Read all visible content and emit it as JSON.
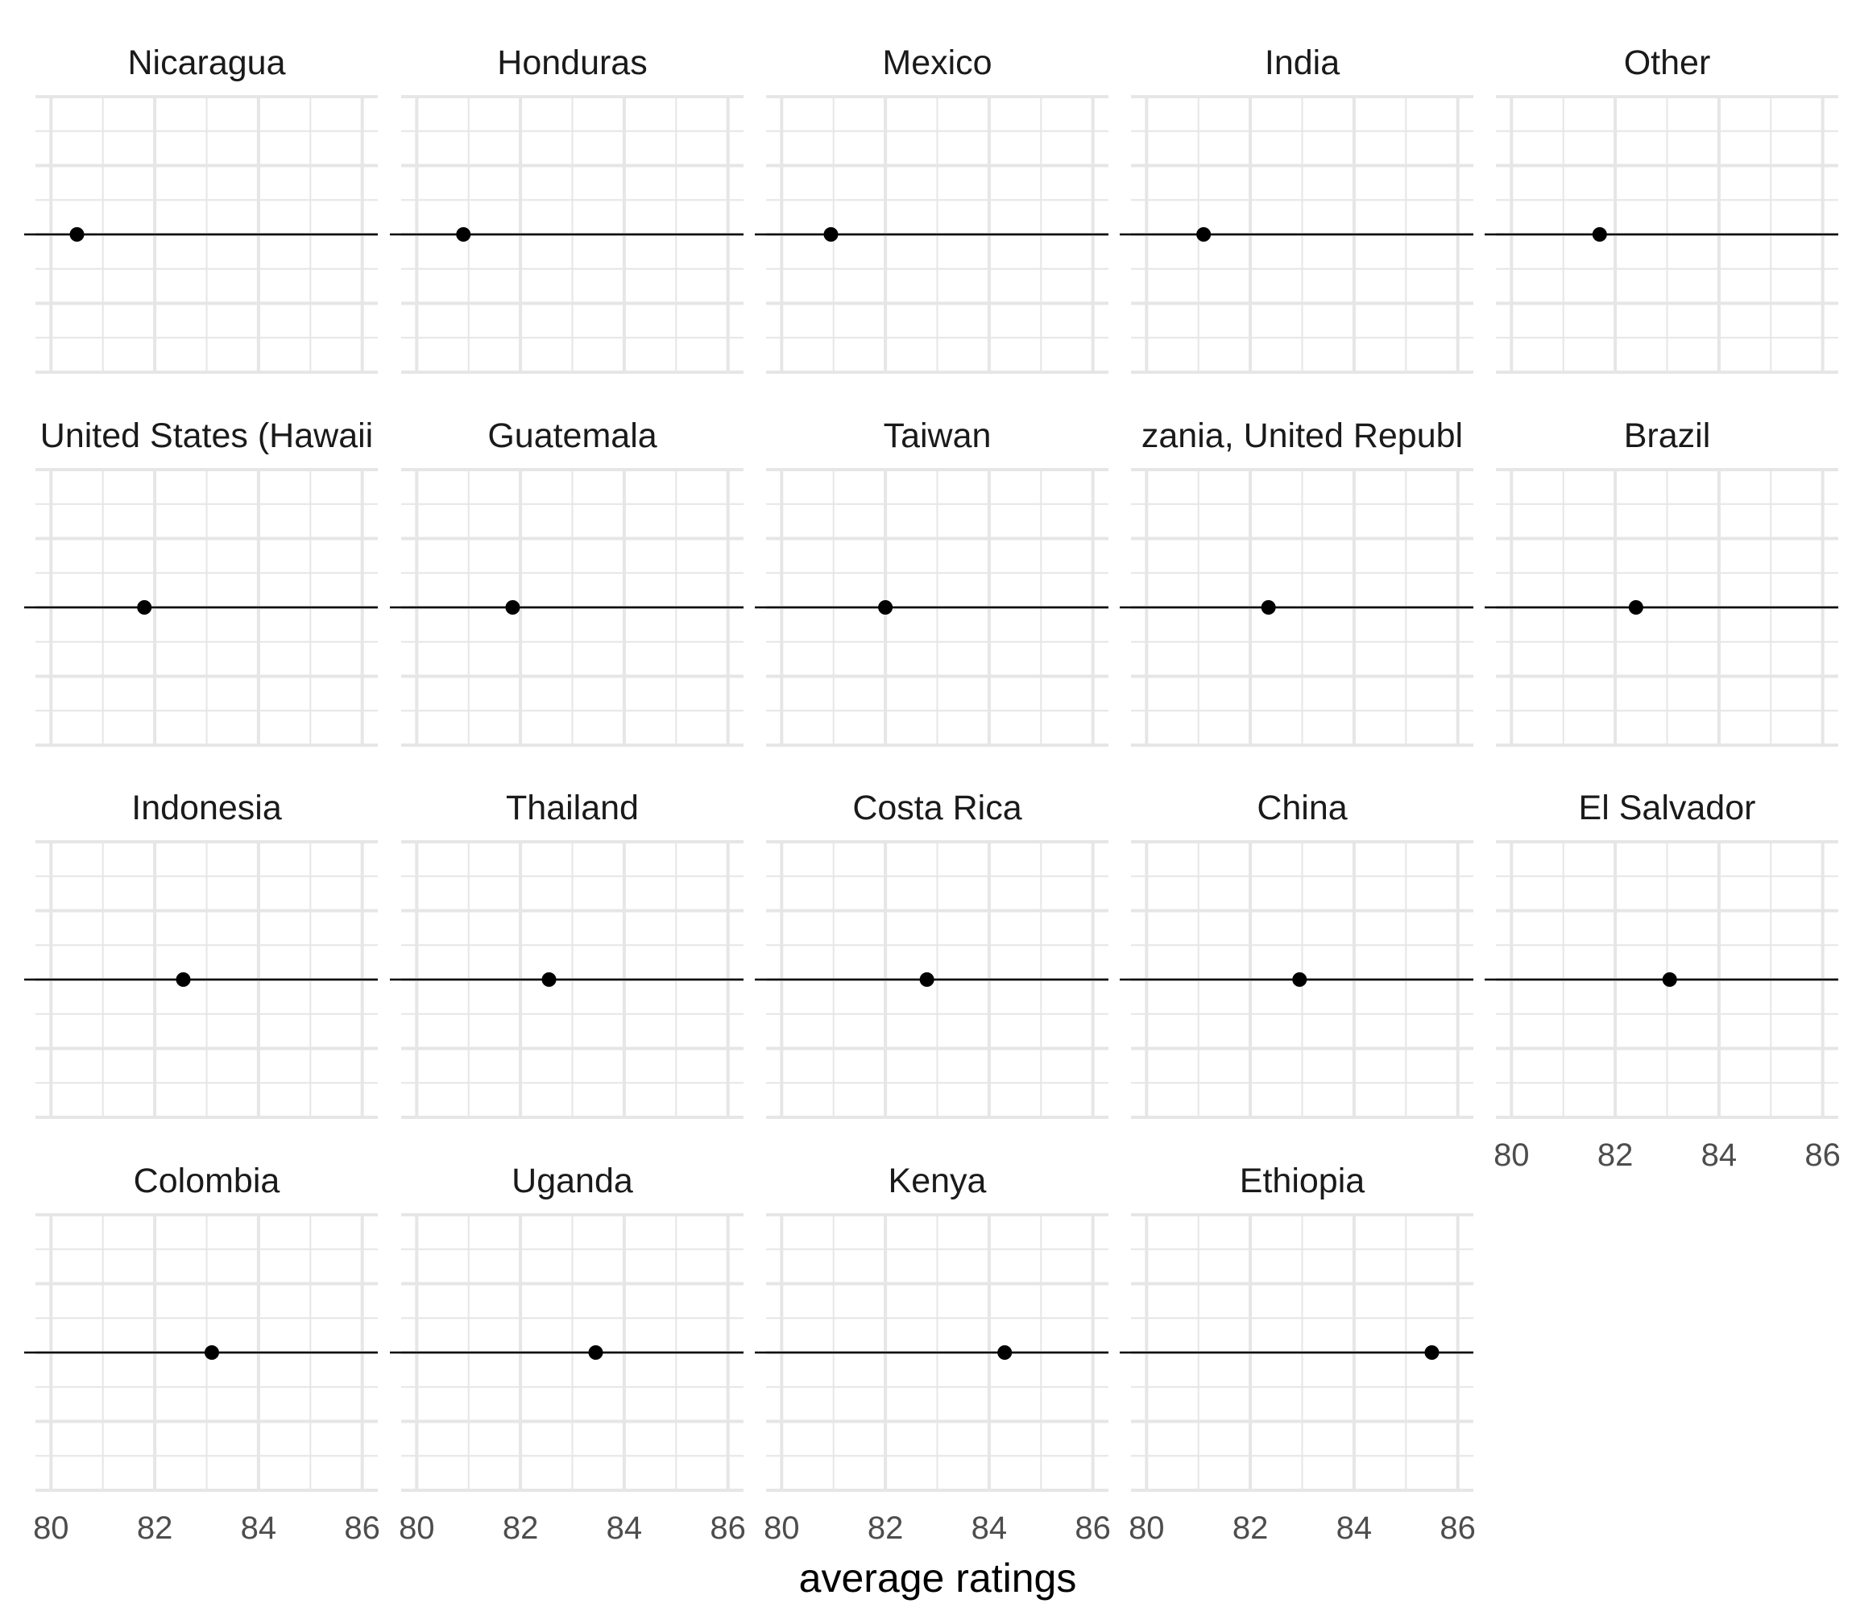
{
  "chart_data": {
    "type": "scatter",
    "layout": "facet_wrap",
    "xlabel": "average ratings",
    "xlim": [
      79.7,
      86.3
    ],
    "xticks": [
      80,
      82,
      84,
      86
    ],
    "grid": true,
    "facets": [
      {
        "name": "Nicaragua",
        "value": 80.5
      },
      {
        "name": "Honduras",
        "value": 80.9
      },
      {
        "name": "Mexico",
        "value": 80.95
      },
      {
        "name": "India",
        "value": 81.1
      },
      {
        "name": "Other",
        "value": 81.7
      },
      {
        "name": "United States (Hawaii)",
        "display": "United States (Hawaii",
        "value": 81.8
      },
      {
        "name": "Guatemala",
        "value": 81.85
      },
      {
        "name": "Taiwan",
        "value": 82.0
      },
      {
        "name": "Tanzania, United Republic Of",
        "display": "zania, United Republ",
        "value": 82.35
      },
      {
        "name": "Brazil",
        "value": 82.4
      },
      {
        "name": "Indonesia",
        "value": 82.55
      },
      {
        "name": "Thailand",
        "value": 82.55
      },
      {
        "name": "Costa Rica",
        "value": 82.8
      },
      {
        "name": "China",
        "value": 82.95
      },
      {
        "name": "El Salvador",
        "value": 83.05
      },
      {
        "name": "Colombia",
        "value": 83.1
      },
      {
        "name": "Uganda",
        "value": 83.45
      },
      {
        "name": "Kenya",
        "value": 84.3
      },
      {
        "name": "Ethiopia",
        "value": 85.5
      }
    ]
  },
  "colors": {
    "grid": "#e6e6e6",
    "mark": "#000000",
    "tick_text": "#4d4d4d",
    "strip_text": "#1a1a1a",
    "axis_title": "#000000"
  }
}
